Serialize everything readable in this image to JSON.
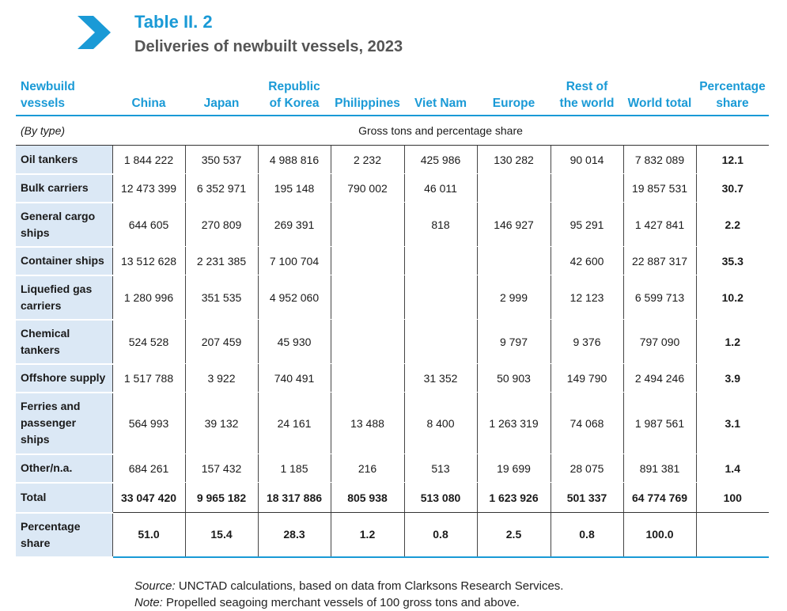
{
  "header": {
    "title": "Table II. 2",
    "subtitle": "Deliveries of newbuilt vessels, 2023",
    "accent_color": "#1a9ad6",
    "icon": "chevron-right-icon"
  },
  "table": {
    "columns": [
      "Newbuild vessels",
      "China",
      "Japan",
      "Republic of Korea",
      "Philippines",
      "Viet Nam",
      "Europe",
      "Rest of the world",
      "World total",
      "Percentage share"
    ],
    "column_lines": [
      [
        "Newbuild",
        "vessels"
      ],
      [
        "China"
      ],
      [
        "Japan"
      ],
      [
        "Republic",
        "of Korea"
      ],
      [
        "Philippines"
      ],
      [
        "Viet Nam"
      ],
      [
        "Europe"
      ],
      [
        "Rest of",
        "the world"
      ],
      [
        "World total"
      ],
      [
        "Percentage",
        "share"
      ]
    ],
    "unit_type": "(By type)",
    "unit_label": "Gross tons and percentage share",
    "rows": [
      {
        "label": [
          "Oil tankers"
        ],
        "values": [
          "1 844 222",
          "350 537",
          "4 988 816",
          "2 232",
          "425 986",
          "130 282",
          "90 014",
          "7 832 089",
          "12.1"
        ]
      },
      {
        "label": [
          "Bulk carriers"
        ],
        "values": [
          "12 473 399",
          "6 352 971",
          "195 148",
          "790 002",
          "46 011",
          "",
          "",
          "19 857 531",
          "30.7"
        ]
      },
      {
        "label": [
          "General cargo",
          "ships"
        ],
        "values": [
          "644 605",
          "270 809",
          "269 391",
          "",
          "818",
          "146 927",
          "95 291",
          "1 427 841",
          "2.2"
        ]
      },
      {
        "label": [
          "Container ships"
        ],
        "values": [
          "13 512 628",
          "2 231 385",
          "7 100 704",
          "",
          "",
          "",
          "42 600",
          "22 887 317",
          "35.3"
        ]
      },
      {
        "label": [
          "Liquefied gas",
          "carriers"
        ],
        "values": [
          "1 280 996",
          "351 535",
          "4 952 060",
          "",
          "",
          "2 999",
          "12 123",
          "6 599 713",
          "10.2"
        ]
      },
      {
        "label": [
          "Chemical",
          "tankers"
        ],
        "values": [
          "524 528",
          "207 459",
          "45 930",
          "",
          "",
          "9 797",
          "9 376",
          "797 090",
          "1.2"
        ]
      },
      {
        "label": [
          "Offshore supply"
        ],
        "values": [
          "1 517 788",
          "3 922",
          "740 491",
          "",
          "31 352",
          "50 903",
          "149 790",
          "2 494 246",
          "3.9"
        ]
      },
      {
        "label": [
          "Ferries and",
          "passenger",
          "ships"
        ],
        "values": [
          "564 993",
          "39 132",
          "24 161",
          "13 488",
          "8 400",
          "1 263 319",
          "74 068",
          "1 987 561",
          "3.1"
        ]
      },
      {
        "label": [
          "Other/n.a."
        ],
        "values": [
          "684 261",
          "157 432",
          "1 185",
          "216",
          "513",
          "19 699",
          "28 075",
          "891 381",
          "1.4"
        ]
      }
    ],
    "total": {
      "label": "Total",
      "values": [
        "33 047 420",
        "9 965 182",
        "18 317 886",
        "805 938",
        "513 080",
        "1 623 926",
        "501 337",
        "64 774 769",
        "100"
      ]
    },
    "share": {
      "label": [
        "Percentage",
        "share"
      ],
      "values": [
        "51.0",
        "15.4",
        "28.3",
        "1.2",
        "0.8",
        "2.5",
        "0.8",
        "100.0",
        ""
      ]
    }
  },
  "notes": {
    "source_label": "Source:",
    "source_text": " UNCTAD calculations, based on data from Clarksons Research Services.",
    "note_label": "Note:",
    "note_text": " Propelled seagoing merchant vessels of 100 gross tons and above."
  }
}
